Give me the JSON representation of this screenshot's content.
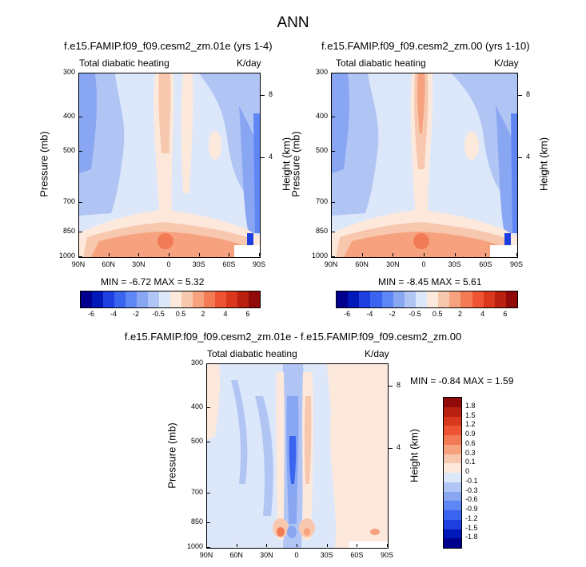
{
  "main_title": "ANN",
  "panels": [
    {
      "title": "f.e15.FAMIP.f09_f09.cesm2_zm.01e (yrs 1-4)",
      "left_label": "Total diabatic heating",
      "right_label": "K/day",
      "ylabel": "Pressure (mb)",
      "y2label": "Height (km)",
      "stats": "MIN =  -6.72   MAX =   5.32"
    },
    {
      "title": "f.e15.FAMIP.f09_f09.cesm2_zm.00 (yrs 1-10)",
      "left_label": "Total diabatic heating",
      "right_label": "K/day",
      "ylabel": "Pressure (mb)",
      "y2label": "Height (km)",
      "stats": "MIN =  -8.45   MAX =   5.61"
    },
    {
      "title": "f.e15.FAMIP.f09_f09.cesm2_zm.01e - f.e15.FAMIP.f09_f09.cesm2_zm.00",
      "left_label": "Total diabatic heating",
      "right_label": "K/day",
      "ylabel": "Pressure (mb)",
      "y2label": "Height (km)",
      "stats": "MIN =  -0.84   MAX =   1.59"
    }
  ],
  "chart_data": {
    "type": "heatmap",
    "x_ticks": [
      "90N",
      "60N",
      "30N",
      "0",
      "30S",
      "60S",
      "90S"
    ],
    "y_ticks": [
      "300",
      "400",
      "500",
      "700",
      "850",
      "1000"
    ],
    "y_tick_values": [
      300,
      400,
      500,
      700,
      850,
      1000
    ],
    "y2_ticks": [
      "8",
      "4"
    ],
    "ylim": [
      1000,
      300
    ],
    "colorbar_main": {
      "labels": [
        "-6",
        "-4",
        "-2",
        "-0.5",
        "0.5",
        "2",
        "4",
        "6"
      ],
      "colors": [
        "#00008f",
        "#0018b8",
        "#1e3ee0",
        "#3a64f0",
        "#5f86f5",
        "#89a6f3",
        "#b1c5f5",
        "#dde7fa",
        "#fde9dc",
        "#f8c8ae",
        "#f6a27f",
        "#f27b55",
        "#ee5433",
        "#d9381d",
        "#b82110",
        "#8f0a08"
      ]
    },
    "colorbar_diff": {
      "labels": [
        "1.8",
        "1.5",
        "1.2",
        "0.9",
        "0.6",
        "0.3",
        "0.1",
        "0",
        "-0.1",
        "-0.3",
        "-0.6",
        "-0.9",
        "-1.2",
        "-1.5",
        "-1.8"
      ],
      "colors": [
        "#8f0a08",
        "#b82110",
        "#d9381d",
        "#ee5433",
        "#f27b55",
        "#f6a27f",
        "#f8c8ae",
        "#fde9dc",
        "#dde7fa",
        "#b1c5f5",
        "#89a6f3",
        "#5f86f5",
        "#3a64f0",
        "#1e3ee0",
        "#0018b8",
        "#00008f"
      ]
    }
  }
}
